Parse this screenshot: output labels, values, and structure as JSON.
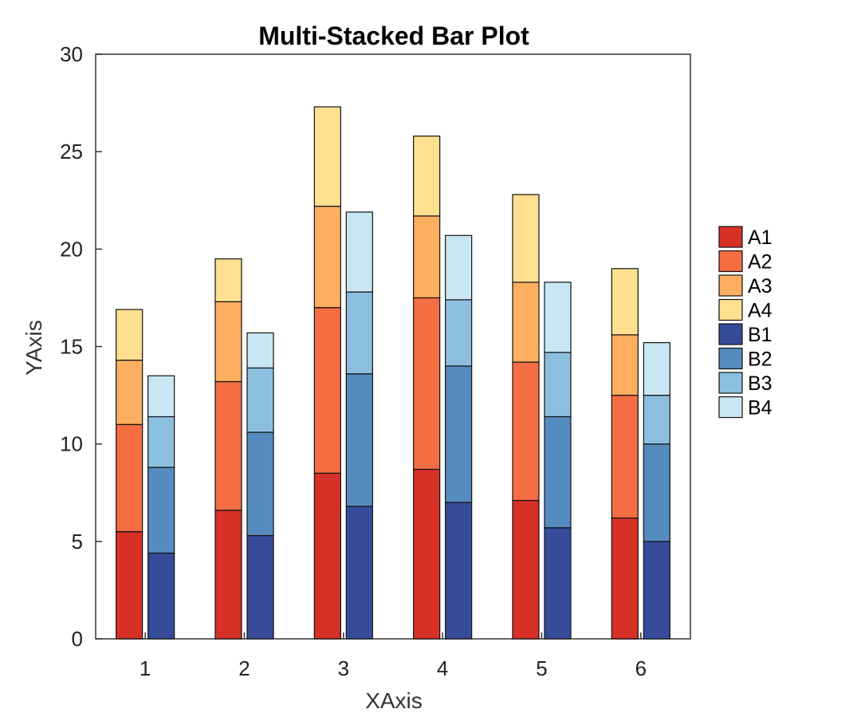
{
  "chart_data": {
    "type": "bar",
    "stacked": true,
    "title": "Multi-Stacked Bar Plot",
    "xlabel": "XAxis",
    "ylabel": "YAxis",
    "categories": [
      "1",
      "2",
      "3",
      "4",
      "5",
      "6"
    ],
    "ylim": [
      0,
      30
    ],
    "yticks": [
      0,
      5,
      10,
      15,
      20,
      25,
      30
    ],
    "grid": false,
    "legend": "right",
    "groups": [
      {
        "name": "A",
        "series": [
          {
            "name": "A1",
            "color": "#d73027",
            "values": [
              5.5,
              6.6,
              8.5,
              8.7,
              7.1,
              6.2
            ]
          },
          {
            "name": "A2",
            "color": "#f46d43",
            "values": [
              5.5,
              6.6,
              8.5,
              8.8,
              7.1,
              6.3
            ]
          },
          {
            "name": "A3",
            "color": "#fdae61",
            "values": [
              3.3,
              4.1,
              5.2,
              4.2,
              4.1,
              3.1
            ]
          },
          {
            "name": "A4",
            "color": "#fee090",
            "values": [
              2.6,
              2.2,
              5.1,
              4.1,
              4.5,
              3.4
            ]
          }
        ]
      },
      {
        "name": "B",
        "series": [
          {
            "name": "B1",
            "color": "#364b9a",
            "values": [
              4.4,
              5.3,
              6.8,
              7.0,
              5.7,
              5.0
            ]
          },
          {
            "name": "B2",
            "color": "#568bbf",
            "values": [
              4.4,
              5.3,
              6.8,
              7.0,
              5.7,
              5.0
            ]
          },
          {
            "name": "B3",
            "color": "#8cbfde",
            "values": [
              2.6,
              3.3,
              4.2,
              3.4,
              3.3,
              2.5
            ]
          },
          {
            "name": "B4",
            "color": "#c9e7f2",
            "values": [
              2.1,
              1.8,
              4.1,
              3.3,
              3.6,
              2.7
            ]
          }
        ]
      }
    ]
  }
}
